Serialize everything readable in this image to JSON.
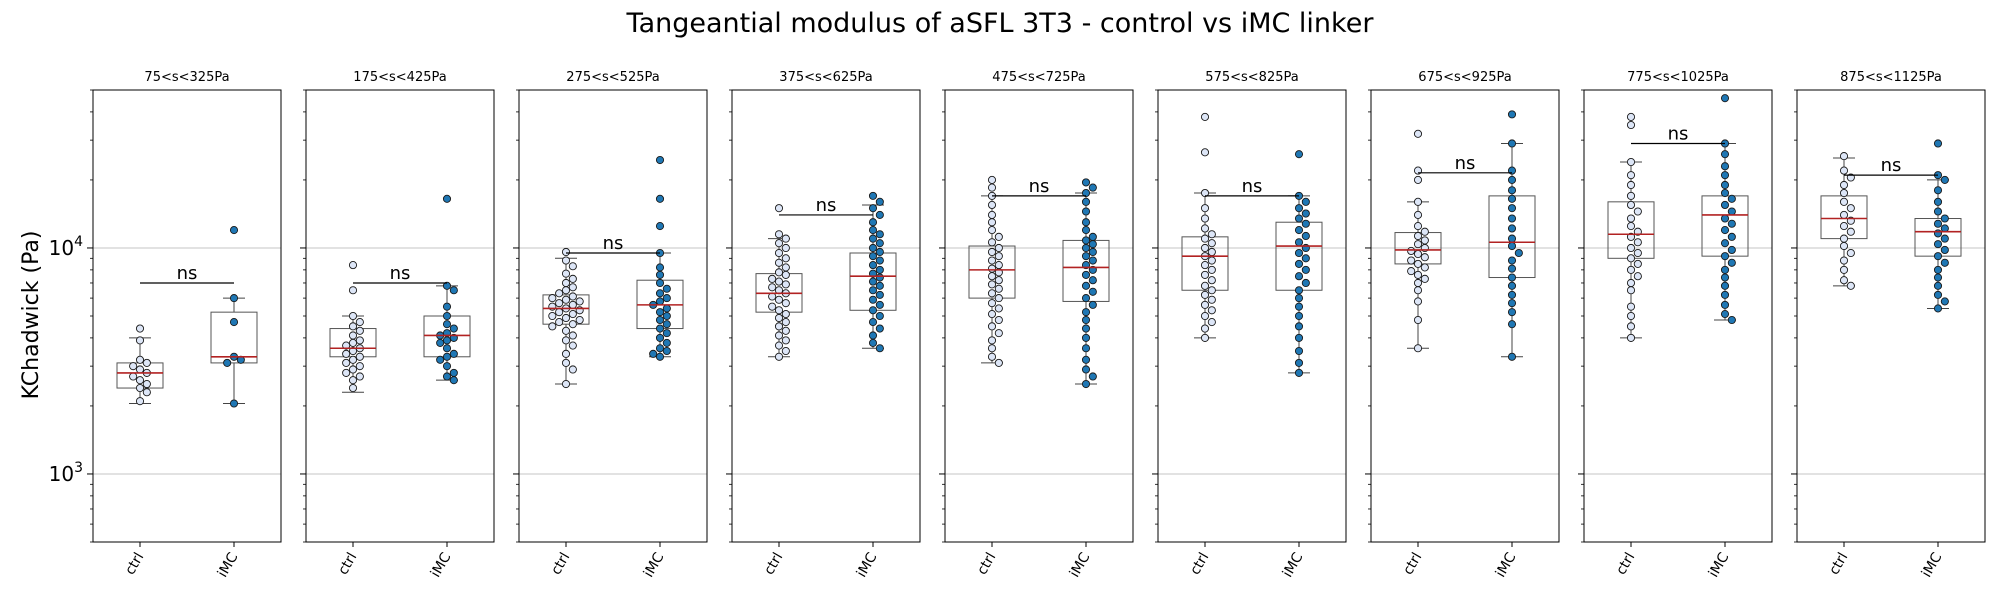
{
  "chart_data": {
    "type": "boxplot-swarm",
    "title": "Tangeantial modulus of aSFL 3T3 - control vs iMC linker",
    "ylabel": "KChadwick (Pa)",
    "yscale": "log",
    "ylim": [
      500,
      50000
    ],
    "y_ticks": [
      {
        "value": 1000,
        "label": "10^3"
      },
      {
        "value": 10000,
        "label": "10^4"
      }
    ],
    "grid": "horizontal major",
    "categories": [
      "ctrl",
      "iMC"
    ],
    "colors": {
      "ctrl": "#dde6f7",
      "iMC": "#1f77b4",
      "median": "#b22222",
      "box_edge": "#555555"
    },
    "panels": [
      {
        "title": "75<s<325Pa",
        "annotation": "ns",
        "bracket_y": 7000,
        "groups": [
          {
            "name": "ctrl",
            "q1": 2400,
            "median": 2800,
            "q3": 3100,
            "whisker_low": 2050,
            "whisker_high": 4000,
            "points": [
              4400,
              3900,
              3200,
              3100,
              3000,
              2900,
              2800,
              2700,
              2600,
              2500,
              2400,
              2300,
              2100
            ]
          },
          {
            "name": "iMC",
            "q1": 3100,
            "median": 3300,
            "q3": 5200,
            "whisker_low": 2050,
            "whisker_high": 6000,
            "points": [
              12000,
              6000,
              4700,
              3300,
              3200,
              3100,
              2050
            ]
          }
        ]
      },
      {
        "title": "175<s<425Pa",
        "annotation": "ns",
        "bracket_y": 7000,
        "groups": [
          {
            "name": "ctrl",
            "q1": 3300,
            "median": 3600,
            "q3": 4400,
            "whisker_low": 2300,
            "whisker_high": 5000,
            "points": [
              8400,
              6500,
              5000,
              4700,
              4500,
              4300,
              4100,
              3900,
              3800,
              3700,
              3600,
              3500,
              3400,
              3300,
              3200,
              3100,
              3000,
              2900,
              2800,
              2700,
              2600,
              2400
            ]
          },
          {
            "name": "iMC",
            "q1": 3300,
            "median": 4100,
            "q3": 5000,
            "whisker_low": 2600,
            "whisker_high": 6800,
            "points": [
              16500,
              6800,
              6500,
              5500,
              5000,
              4600,
              4400,
              4200,
              4100,
              4000,
              3900,
              3800,
              3600,
              3400,
              3300,
              3200,
              3000,
              2800,
              2700,
              2600
            ]
          }
        ]
      },
      {
        "title": "275<s<525Pa",
        "annotation": "ns",
        "bracket_y": 9500,
        "groups": [
          {
            "name": "ctrl",
            "q1": 4600,
            "median": 5400,
            "q3": 6200,
            "whisker_low": 2500,
            "whisker_high": 9000,
            "points": [
              9600,
              8800,
              8300,
              7700,
              7300,
              7000,
              6700,
              6500,
              6300,
              6100,
              6000,
              5900,
              5800,
              5700,
              5600,
              5500,
              5400,
              5300,
              5200,
              5100,
              5000,
              4900,
              4800,
              4700,
              4600,
              4500,
              4300,
              4100,
              3900,
              3700,
              3400,
              3100,
              2900,
              2500
            ]
          },
          {
            "name": "iMC",
            "q1": 4400,
            "median": 5600,
            "q3": 7200,
            "whisker_low": 3300,
            "whisker_high": 9500,
            "points": [
              24500,
              16500,
              12500,
              9500,
              8200,
              7600,
              7000,
              6600,
              6300,
              6000,
              5800,
              5600,
              5400,
              5200,
              5000,
              4800,
              4600,
              4400,
              4200,
              4000,
              3800,
              3600,
              3500,
              3400,
              3300
            ]
          }
        ]
      },
      {
        "title": "375<s<625Pa",
        "annotation": "ns",
        "bracket_y": 14000,
        "groups": [
          {
            "name": "ctrl",
            "q1": 5200,
            "median": 6300,
            "q3": 7700,
            "whisker_low": 3300,
            "whisker_high": 11000,
            "points": [
              15000,
              11500,
              11000,
              10500,
              10000,
              9500,
              9000,
              8600,
              8200,
              7800,
              7600,
              7300,
              7100,
              6900,
              6700,
              6500,
              6300,
              6100,
              5900,
              5700,
              5500,
              5300,
              5100,
              4900,
              4700,
              4500,
              4300,
              4100,
              3900,
              3700,
              3500,
              3300
            ]
          },
          {
            "name": "iMC",
            "q1": 5300,
            "median": 7500,
            "q3": 9500,
            "whisker_low": 3600,
            "whisker_high": 15500,
            "points": [
              17000,
              16000,
              15000,
              14000,
              13000,
              12000,
              11500,
              11000,
              10500,
              10000,
              9600,
              9200,
              8800,
              8400,
              8000,
              7700,
              7400,
              7100,
              6800,
              6500,
              6200,
              5900,
              5600,
              5300,
              5000,
              4700,
              4400,
              4100,
              3800,
              3600
            ]
          }
        ]
      },
      {
        "title": "475<s<725Pa",
        "annotation": "ns",
        "bracket_y": 17000,
        "groups": [
          {
            "name": "ctrl",
            "q1": 6000,
            "median": 8000,
            "q3": 10200,
            "whisker_low": 3100,
            "whisker_high": 17000,
            "points": [
              20000,
              18500,
              17000,
              15500,
              14000,
              13000,
              12000,
              11200,
              10600,
              10000,
              9600,
              9200,
              8800,
              8400,
              8100,
              7800,
              7500,
              7200,
              6900,
              6600,
              6300,
              6000,
              5700,
              5400,
              5100,
              4800,
              4500,
              4200,
              3900,
              3600,
              3300,
              3100
            ]
          },
          {
            "name": "iMC",
            "q1": 5800,
            "median": 8200,
            "q3": 10800,
            "whisker_low": 2500,
            "whisker_high": 17500,
            "points": [
              19500,
              18500,
              17500,
              16000,
              14500,
              13000,
              12000,
              11200,
              10800,
              10400,
              10000,
              9600,
              9200,
              8800,
              8400,
              8000,
              7600,
              7200,
              6800,
              6400,
              6000,
              5600,
              5200,
              4800,
              4400,
              4000,
              3600,
              3200,
              2900,
              2700,
              2500
            ]
          }
        ]
      },
      {
        "title": "575<s<825Pa",
        "annotation": "ns",
        "bracket_y": 17000,
        "groups": [
          {
            "name": "ctrl",
            "q1": 6500,
            "median": 9200,
            "q3": 11200,
            "whisker_low": 4000,
            "whisker_high": 17500,
            "points": [
              38000,
              26500,
              17500,
              15000,
              13500,
              12200,
              11500,
              11000,
              10500,
              10000,
              9600,
              9200,
              8800,
              8400,
              8000,
              7600,
              7200,
              6800,
              6500,
              6200,
              5900,
              5600,
              5300,
              5000,
              4700,
              4400,
              4000
            ]
          },
          {
            "name": "iMC",
            "q1": 6500,
            "median": 10200,
            "q3": 13000,
            "whisker_low": 2800,
            "whisker_high": 17000,
            "points": [
              26000,
              17000,
              16000,
              15000,
              14200,
              13500,
              12800,
              12000,
              11300,
              10600,
              10000,
              9500,
              9000,
              8500,
              8000,
              7500,
              7000,
              6500,
              6000,
              5500,
              5000,
              4500,
              4000,
              3500,
              3100,
              2800
            ]
          }
        ]
      },
      {
        "title": "675<s<925Pa",
        "annotation": "ns",
        "bracket_y": 21500,
        "groups": [
          {
            "name": "ctrl",
            "q1": 8500,
            "median": 9800,
            "q3": 11700,
            "whisker_low": 3600,
            "whisker_high": 16000,
            "points": [
              32000,
              22000,
              20000,
              16000,
              14000,
              12500,
              11800,
              11300,
              10800,
              10400,
              10000,
              9700,
              9400,
              9100,
              8800,
              8500,
              8200,
              7900,
              7600,
              7300,
              7000,
              6500,
              5800,
              4800,
              3600
            ]
          },
          {
            "name": "iMC",
            "q1": 7400,
            "median": 10600,
            "q3": 17000,
            "whisker_low": 3300,
            "whisker_high": 29000,
            "points": [
              39000,
              29000,
              22000,
              20000,
              18000,
              16500,
              15000,
              13500,
              12200,
              11000,
              10200,
              9500,
              8800,
              8100,
              7400,
              6800,
              6200,
              5700,
              5200,
              4600,
              3300
            ]
          }
        ]
      },
      {
        "title": "775<s<1025Pa",
        "annotation": "ns",
        "bracket_y": 29000,
        "groups": [
          {
            "name": "ctrl",
            "q1": 9000,
            "median": 11500,
            "q3": 16000,
            "whisker_low": 4000,
            "whisker_high": 24000,
            "points": [
              38000,
              35000,
              24000,
              21000,
              19000,
              17000,
              15500,
              14500,
              13500,
              12500,
              11800,
              11200,
              10600,
              10000,
              9500,
              9000,
              8500,
              8000,
              7500,
              7000,
              6500,
              5500,
              5000,
              4500,
              4000
            ]
          },
          {
            "name": "iMC",
            "q1": 9200,
            "median": 14000,
            "q3": 17000,
            "whisker_low": 4800,
            "whisker_high": 29000,
            "points": [
              46000,
              29000,
              26000,
              23000,
              21000,
              19000,
              17500,
              16500,
              15500,
              14500,
              13500,
              12800,
              12000,
              11200,
              10500,
              9800,
              9200,
              8600,
              8000,
              7400,
              6800,
              6200,
              5600,
              5100,
              4800
            ]
          }
        ]
      },
      {
        "title": "875<s<1125Pa",
        "annotation": "ns",
        "bracket_y": 21000,
        "groups": [
          {
            "name": "ctrl",
            "q1": 11000,
            "median": 13500,
            "q3": 17000,
            "whisker_low": 6800,
            "whisker_high": 25000,
            "points": [
              25500,
              22000,
              20500,
              19000,
              17500,
              16000,
              15000,
              14000,
              13200,
              12500,
              11800,
              11000,
              10200,
              9500,
              8800,
              8000,
              7200,
              6800
            ]
          },
          {
            "name": "iMC",
            "q1": 9200,
            "median": 11800,
            "q3": 13500,
            "whisker_low": 5400,
            "whisker_high": 20000,
            "points": [
              29000,
              21000,
              20000,
              18000,
              16000,
              14500,
              13500,
              12800,
              12200,
              11600,
              11000,
              10400,
              9800,
              9200,
              8600,
              8000,
              7400,
              6800,
              6200,
              5800,
              5400
            ]
          }
        ]
      }
    ]
  }
}
